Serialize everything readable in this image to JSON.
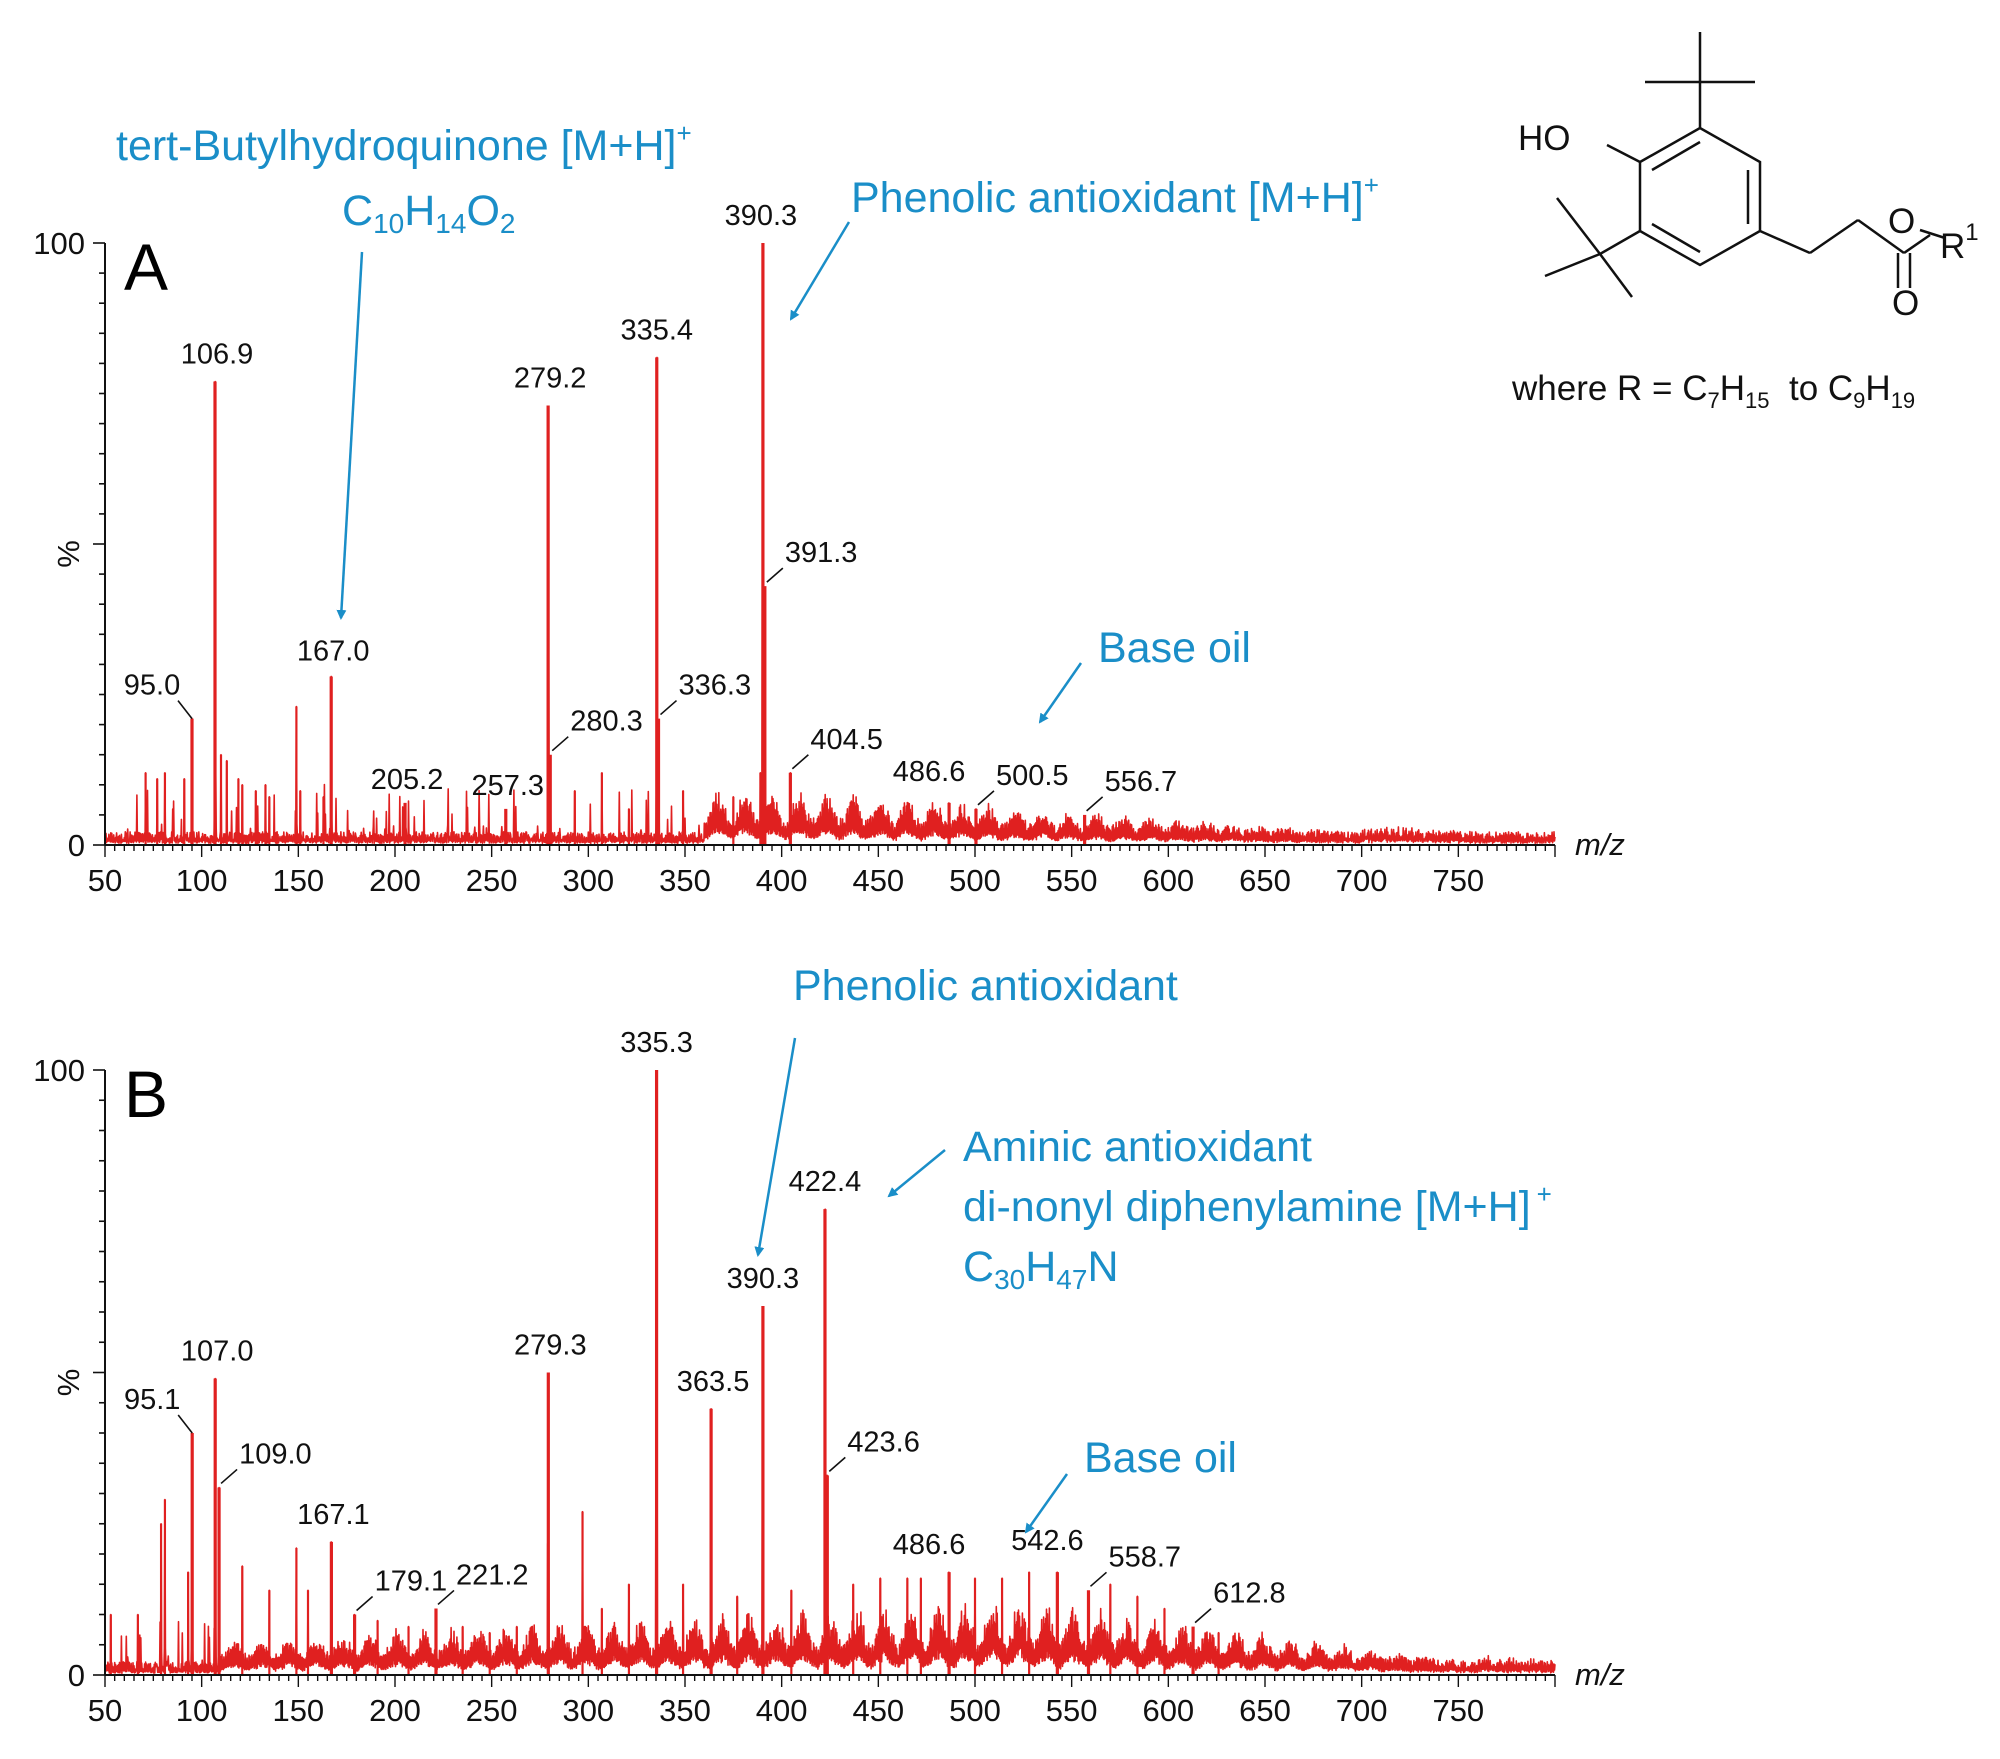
{
  "colors": {
    "spectrum": "#e02020",
    "annotation": "#1a8ec8",
    "axis": "#111111"
  },
  "structure": {
    "ho_label": "HO",
    "o_ester": "O",
    "o_carbonyl": "O",
    "r_label": "R",
    "r_superscript": "1",
    "where_prefix": "where R = C",
    "where_sub1": "7",
    "where_h1": "H",
    "where_sub2": "15",
    "where_to": "  to C",
    "where_sub3": "9",
    "where_h2": "H",
    "where_sub4": "19"
  },
  "chart_data": [
    {
      "panel": "A",
      "type": "line",
      "xlabel": "m/z",
      "ylabel": "%",
      "xlim": [
        50,
        800
      ],
      "ylim": [
        0,
        100
      ],
      "x_ticks": [
        "50",
        "100",
        "150",
        "200",
        "250",
        "300",
        "350",
        "400",
        "450",
        "500",
        "550",
        "600",
        "650",
        "700",
        "750"
      ],
      "y_ticks": [
        "0",
        "100"
      ],
      "peaks": [
        {
          "x": 95.0,
          "y": 21,
          "label": "95.0"
        },
        {
          "x": 106.9,
          "y": 77,
          "label": "106.9"
        },
        {
          "x": 167.0,
          "y": 28,
          "label": "167.0"
        },
        {
          "x": 205.2,
          "y": 7,
          "label": "205.2"
        },
        {
          "x": 257.3,
          "y": 6,
          "label": "257.3"
        },
        {
          "x": 279.2,
          "y": 73,
          "label": "279.2"
        },
        {
          "x": 280.3,
          "y": 15,
          "label": "280.3"
        },
        {
          "x": 335.4,
          "y": 81,
          "label": "335.4"
        },
        {
          "x": 336.3,
          "y": 21,
          "label": "336.3"
        },
        {
          "x": 390.3,
          "y": 100,
          "label": "390.3"
        },
        {
          "x": 391.3,
          "y": 43,
          "label": "391.3"
        },
        {
          "x": 404.5,
          "y": 12,
          "label": "404.5"
        },
        {
          "x": 486.6,
          "y": 7,
          "label": "486.6"
        },
        {
          "x": 500.5,
          "y": 6,
          "label": "500.5"
        },
        {
          "x": 556.7,
          "y": 5,
          "label": "556.7"
        }
      ],
      "unlabeled_peaks": [
        {
          "x": 71,
          "y": 12
        },
        {
          "x": 77,
          "y": 11
        },
        {
          "x": 81,
          "y": 12
        },
        {
          "x": 91,
          "y": 11
        },
        {
          "x": 110,
          "y": 15
        },
        {
          "x": 113,
          "y": 14
        },
        {
          "x": 119,
          "y": 11
        },
        {
          "x": 121,
          "y": 10
        },
        {
          "x": 128,
          "y": 9
        },
        {
          "x": 133,
          "y": 10
        },
        {
          "x": 135,
          "y": 8
        },
        {
          "x": 149,
          "y": 23
        },
        {
          "x": 151,
          "y": 9
        },
        {
          "x": 163,
          "y": 8
        },
        {
          "x": 293,
          "y": 9
        },
        {
          "x": 307,
          "y": 12
        },
        {
          "x": 321,
          "y": 6
        },
        {
          "x": 349,
          "y": 9
        },
        {
          "x": 375,
          "y": 8
        },
        {
          "x": 389,
          "y": 12
        }
      ],
      "baseline": {
        "x_start": 360,
        "x_end": 700,
        "y_at_start": 7,
        "y_at_peak": 7,
        "peak_x": 420
      }
    },
    {
      "panel": "B",
      "type": "line",
      "xlabel": "m/z",
      "ylabel": "%",
      "xlim": [
        50,
        800
      ],
      "ylim": [
        0,
        100
      ],
      "x_ticks": [
        "50",
        "100",
        "150",
        "200",
        "250",
        "300",
        "350",
        "400",
        "450",
        "500",
        "550",
        "600",
        "650",
        "700",
        "750"
      ],
      "y_ticks": [
        "0",
        "100"
      ],
      "peaks": [
        {
          "x": 95.1,
          "y": 40,
          "label": "95.1"
        },
        {
          "x": 107.0,
          "y": 49,
          "label": "107.0"
        },
        {
          "x": 109.0,
          "y": 31,
          "label": "109.0"
        },
        {
          "x": 167.1,
          "y": 22,
          "label": "167.1"
        },
        {
          "x": 179.1,
          "y": 10,
          "label": "179.1"
        },
        {
          "x": 221.2,
          "y": 11,
          "label": "221.2"
        },
        {
          "x": 279.3,
          "y": 50,
          "label": "279.3"
        },
        {
          "x": 335.3,
          "y": 100,
          "label": "335.3"
        },
        {
          "x": 363.5,
          "y": 44,
          "label": "363.5"
        },
        {
          "x": 390.3,
          "y": 61,
          "label": "390.3"
        },
        {
          "x": 422.4,
          "y": 77,
          "label": "422.4"
        },
        {
          "x": 423.6,
          "y": 33,
          "label": "423.6"
        },
        {
          "x": 486.6,
          "y": 17,
          "label": "486.6"
        },
        {
          "x": 542.6,
          "y": 17,
          "label": "542.6"
        },
        {
          "x": 558.7,
          "y": 14,
          "label": "558.7"
        },
        {
          "x": 612.8,
          "y": 8,
          "label": "612.8"
        }
      ],
      "unlabeled_peaks": [
        {
          "x": 53,
          "y": 10
        },
        {
          "x": 67,
          "y": 10
        },
        {
          "x": 79,
          "y": 25
        },
        {
          "x": 81,
          "y": 29
        },
        {
          "x": 93,
          "y": 17
        },
        {
          "x": 121,
          "y": 18
        },
        {
          "x": 135,
          "y": 14
        },
        {
          "x": 149,
          "y": 21
        },
        {
          "x": 155,
          "y": 14
        },
        {
          "x": 191,
          "y": 9
        },
        {
          "x": 207,
          "y": 8
        },
        {
          "x": 235,
          "y": 8
        },
        {
          "x": 249,
          "y": 7
        },
        {
          "x": 263,
          "y": 8
        },
        {
          "x": 297,
          "y": 27
        },
        {
          "x": 307,
          "y": 11
        },
        {
          "x": 321,
          "y": 15
        },
        {
          "x": 349,
          "y": 15
        },
        {
          "x": 377,
          "y": 13
        },
        {
          "x": 405,
          "y": 14
        },
        {
          "x": 437,
          "y": 15
        },
        {
          "x": 451,
          "y": 16
        },
        {
          "x": 465,
          "y": 16
        },
        {
          "x": 472,
          "y": 16
        },
        {
          "x": 500,
          "y": 16
        },
        {
          "x": 514,
          "y": 16
        },
        {
          "x": 528,
          "y": 17
        },
        {
          "x": 570,
          "y": 15
        },
        {
          "x": 584,
          "y": 13
        },
        {
          "x": 598,
          "y": 11
        },
        {
          "x": 626,
          "y": 7
        }
      ],
      "baseline": {
        "x_start": 110,
        "x_end": 760,
        "y_at_start": 4,
        "y_at_peak": 11,
        "peak_x": 520
      }
    }
  ],
  "annotations": {
    "a_tbhq_line1": "tert-Butylhydroquinone [M+H]",
    "a_tbhq_sup": "+",
    "a_tbhq_formula_c": "C",
    "a_tbhq_formula_c_sub": "10",
    "a_tbhq_formula_h": "H",
    "a_tbhq_formula_h_sub": "14",
    "a_tbhq_formula_o": "O",
    "a_tbhq_formula_o_sub": "2",
    "a_phenolic": "Phenolic antioxidant [M+H]",
    "a_phenolic_sup": "+",
    "a_base_oil": "Base oil",
    "b_phenolic": "Phenolic antioxidant",
    "b_aminic_line1": "Aminic antioxidant",
    "b_aminic_line2": "di-nonyl diphenylamine [M+H]",
    "b_aminic_sup": "+",
    "b_aminic_formula_c": "C",
    "b_aminic_formula_c_sub": "30",
    "b_aminic_formula_h": "H",
    "b_aminic_formula_h_sub": "47",
    "b_aminic_formula_n": "N",
    "b_base_oil": "Base oil"
  }
}
